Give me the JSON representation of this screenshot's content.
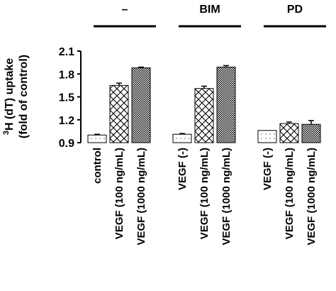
{
  "chart_data": {
    "type": "bar",
    "ylabel_sup": "3",
    "ylabel_line1": "H (dT) uptake",
    "ylabel_line2": "(fold of control)",
    "ylim": [
      0.9,
      2.1
    ],
    "yticks": [
      "0.9",
      "1.2",
      "1.5",
      "1.8",
      "2.1"
    ],
    "groups": [
      {
        "label": "–",
        "categories": [
          "control",
          "VEGF (100 ng/mL)",
          "VEGF (1000 ng/mL)"
        ],
        "values": [
          1.0,
          1.65,
          1.88
        ],
        "errors": [
          0.01,
          0.03,
          0.01
        ],
        "patterns": [
          "dots",
          "cross",
          "dense"
        ]
      },
      {
        "label": "BIM",
        "categories": [
          "VEGF (-)",
          "VEGF (100 ng/mL)",
          "VEGF (1000 ng/mL)"
        ],
        "values": [
          1.01,
          1.61,
          1.89
        ],
        "errors": [
          0.01,
          0.03,
          0.02
        ],
        "patterns": [
          "dots",
          "cross",
          "dense"
        ]
      },
      {
        "label": "PD",
        "categories": [
          "VEGF (-)",
          "VEGF (100 ng/mL)",
          "VEGF (1000 ng/mL)"
        ],
        "values": [
          1.06,
          1.15,
          1.14
        ],
        "errors": [
          0.0,
          0.02,
          0.05
        ],
        "patterns": [
          "dots",
          "cross",
          "dense"
        ]
      }
    ]
  }
}
